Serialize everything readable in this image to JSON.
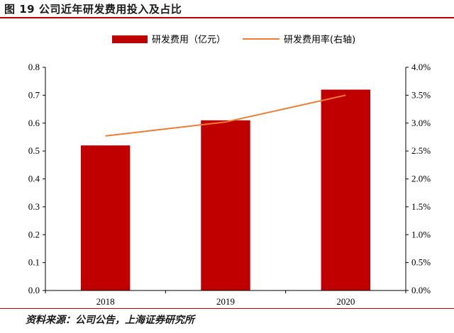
{
  "figure": {
    "title": "图 19 公司近年研发费用投入及占比",
    "source": "资料来源：公司公告，上海证券研究所"
  },
  "colors": {
    "bar": "#c00000",
    "line": "#ed7d31",
    "rule": "#c00000"
  },
  "chart_data": {
    "type": "bar",
    "categories": [
      "2018",
      "2019",
      "2020"
    ],
    "series": [
      {
        "name": "研发费用（亿元）",
        "type": "bar",
        "axis": "left",
        "values": [
          0.52,
          0.61,
          0.72
        ]
      },
      {
        "name": "研发费用率(右轴)",
        "type": "line",
        "axis": "right",
        "values": [
          2.77,
          3.02,
          3.5
        ]
      }
    ],
    "ylim": [
      0,
      0.8
    ],
    "y2lim": [
      0,
      4.0
    ],
    "yticks": [
      "0.0",
      "0.1",
      "0.2",
      "0.3",
      "0.4",
      "0.5",
      "0.6",
      "0.7",
      "0.8"
    ],
    "y2ticks": [
      "0.0%",
      "0.5%",
      "1.0%",
      "1.5%",
      "2.0%",
      "2.5%",
      "3.0%",
      "3.5%",
      "4.0%"
    ],
    "legend": "top-center",
    "grid": false
  }
}
